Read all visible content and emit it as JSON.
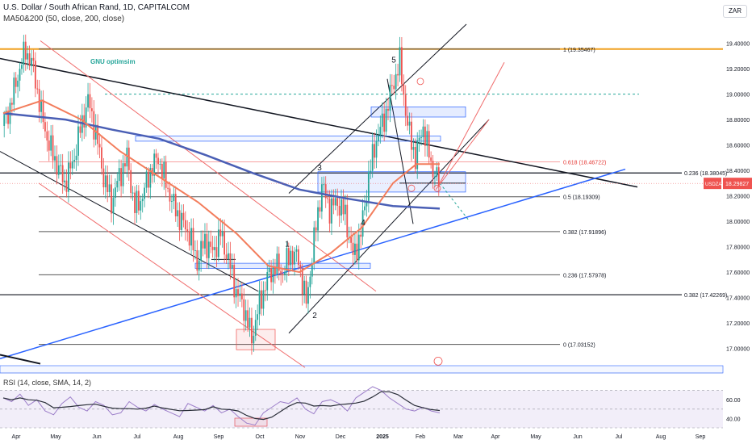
{
  "header": {
    "symbol_line": "U.S. Dollar / South African Rand, 1D, CAPITALCOM",
    "indicator_line": "MA50&200 (50, close, 200, close)"
  },
  "currency_button": "ZAR",
  "rsi_header": "RSI (14, close, SMA, 14, 2)",
  "colors": {
    "up_candle": "#26a69a",
    "down_candle": "#ef5350",
    "ma50": "#f37d5c",
    "ma200": "#4a5fb5",
    "trend_blue": "#2962ff",
    "channel_red": "#f06b6b",
    "gold_line": "#f0a020",
    "rsi_line": "#2a2e39",
    "rsi_band": "#7e57c2"
  },
  "chart_data": {
    "type": "candlestick",
    "symbol": "USDZAR",
    "ylim": [
      16.82,
      19.55
    ],
    "y_ticks": [
      "19.40000",
      "19.20000",
      "19.00000",
      "18.80000",
      "18.60000",
      "18.40000",
      "18.20000",
      "18.00000",
      "17.80000",
      "17.60000",
      "17.40000",
      "17.20000",
      "17.00000"
    ],
    "x_ticks": [
      "Apr",
      "May",
      "Jun",
      "Jul",
      "Aug",
      "Sep",
      "Oct",
      "Nov",
      "Dec",
      "2025",
      "Feb",
      "Mar",
      "Apr",
      "May",
      "Jun",
      "Jul",
      "Aug",
      "Sep"
    ],
    "last_price_label": "USDZAR",
    "last_price": "18.29827",
    "close_path": [
      [
        0,
        18.75
      ],
      [
        1,
        18.9
      ],
      [
        2,
        19.15
      ],
      [
        3,
        19.35
      ],
      [
        4,
        19.2
      ],
      [
        5,
        18.85
      ],
      [
        6,
        18.6
      ],
      [
        7,
        18.45
      ],
      [
        8,
        18.3
      ],
      [
        9,
        18.45
      ],
      [
        10,
        18.72
      ],
      [
        11,
        18.95
      ],
      [
        12,
        18.7
      ],
      [
        13,
        18.35
      ],
      [
        14,
        18.15
      ],
      [
        15,
        18.35
      ],
      [
        16,
        18.5
      ],
      [
        17,
        18.1
      ],
      [
        18,
        18.2
      ],
      [
        19,
        18.4
      ],
      [
        20,
        18.5
      ],
      [
        21,
        18.3
      ],
      [
        22,
        18.12
      ],
      [
        23,
        18.0
      ],
      [
        24,
        17.9
      ],
      [
        25,
        17.68
      ],
      [
        26,
        17.85
      ],
      [
        27,
        17.75
      ],
      [
        28,
        17.9
      ],
      [
        29,
        17.7
      ],
      [
        30,
        17.45
      ],
      [
        31,
        17.32
      ],
      [
        32,
        17.08
      ],
      [
        33,
        17.35
      ],
      [
        34,
        17.55
      ],
      [
        35,
        17.65
      ],
      [
        36,
        17.6
      ],
      [
        37,
        17.75
      ],
      [
        38,
        17.7
      ],
      [
        39,
        17.35
      ],
      [
        40,
        17.85
      ],
      [
        41,
        18.28
      ],
      [
        42,
        18.1
      ],
      [
        43,
        18.15
      ],
      [
        44,
        18.05
      ],
      [
        45,
        17.72
      ],
      [
        46,
        17.9
      ],
      [
        47,
        18.35
      ],
      [
        48,
        18.65
      ],
      [
        49,
        18.8
      ],
      [
        50,
        19.05
      ],
      [
        51,
        19.25
      ],
      [
        52,
        18.75
      ],
      [
        53,
        18.5
      ],
      [
        54,
        18.75
      ],
      [
        55,
        18.45
      ],
      [
        56,
        18.3
      ]
    ],
    "ma50_path": [
      [
        0,
        18.85
      ],
      [
        5,
        18.95
      ],
      [
        10,
        18.8
      ],
      [
        15,
        18.55
      ],
      [
        20,
        18.35
      ],
      [
        25,
        18.15
      ],
      [
        30,
        17.9
      ],
      [
        34,
        17.65
      ],
      [
        38,
        17.6
      ],
      [
        42,
        17.75
      ],
      [
        46,
        17.95
      ],
      [
        50,
        18.3
      ],
      [
        53,
        18.45
      ],
      [
        56,
        18.45
      ]
    ],
    "ma200_path": [
      [
        0,
        18.85
      ],
      [
        8,
        18.8
      ],
      [
        14,
        18.72
      ],
      [
        20,
        18.65
      ],
      [
        26,
        18.52
      ],
      [
        32,
        18.38
      ],
      [
        38,
        18.25
      ],
      [
        44,
        18.18
      ],
      [
        50,
        18.12
      ],
      [
        56,
        18.1
      ]
    ],
    "fib_levels": [
      {
        "label": "1 (19.35467)",
        "value": 19.35467
      },
      {
        "label": "0.618 (18.46722)",
        "value": 18.46722
      },
      {
        "label": "0.5 (18.19309)",
        "value": 18.19309
      },
      {
        "label": "0.382 (17.91896)",
        "value": 17.91896
      },
      {
        "label": "0.236 (17.57978)",
        "value": 17.57978
      },
      {
        "label": "0 (17.03152)",
        "value": 17.03152
      }
    ],
    "horizontal_levels": [
      {
        "label": "0.236 (18.38045)",
        "value": 18.38045
      },
      {
        "label": "0.382 (17.42269)",
        "value": 17.42269
      }
    ],
    "wave_labels": [
      "1",
      "2",
      "3",
      "4",
      "5"
    ],
    "annotation": "GNU optimsim",
    "rsi": {
      "ylim": [
        30,
        80
      ],
      "ticks": [
        "60.00",
        "40.00"
      ],
      "values": [
        62,
        58,
        66,
        54,
        60,
        48,
        44,
        56,
        63,
        52,
        48,
        58,
        54,
        44,
        46,
        58,
        52,
        48,
        55,
        50,
        46,
        42,
        56,
        52,
        48,
        54,
        46,
        50,
        42,
        35,
        33,
        46,
        52,
        58,
        56,
        62,
        50,
        45,
        58,
        60,
        56,
        48,
        62,
        68,
        74,
        70,
        62,
        56,
        50,
        48,
        52,
        48,
        46
      ]
    }
  }
}
